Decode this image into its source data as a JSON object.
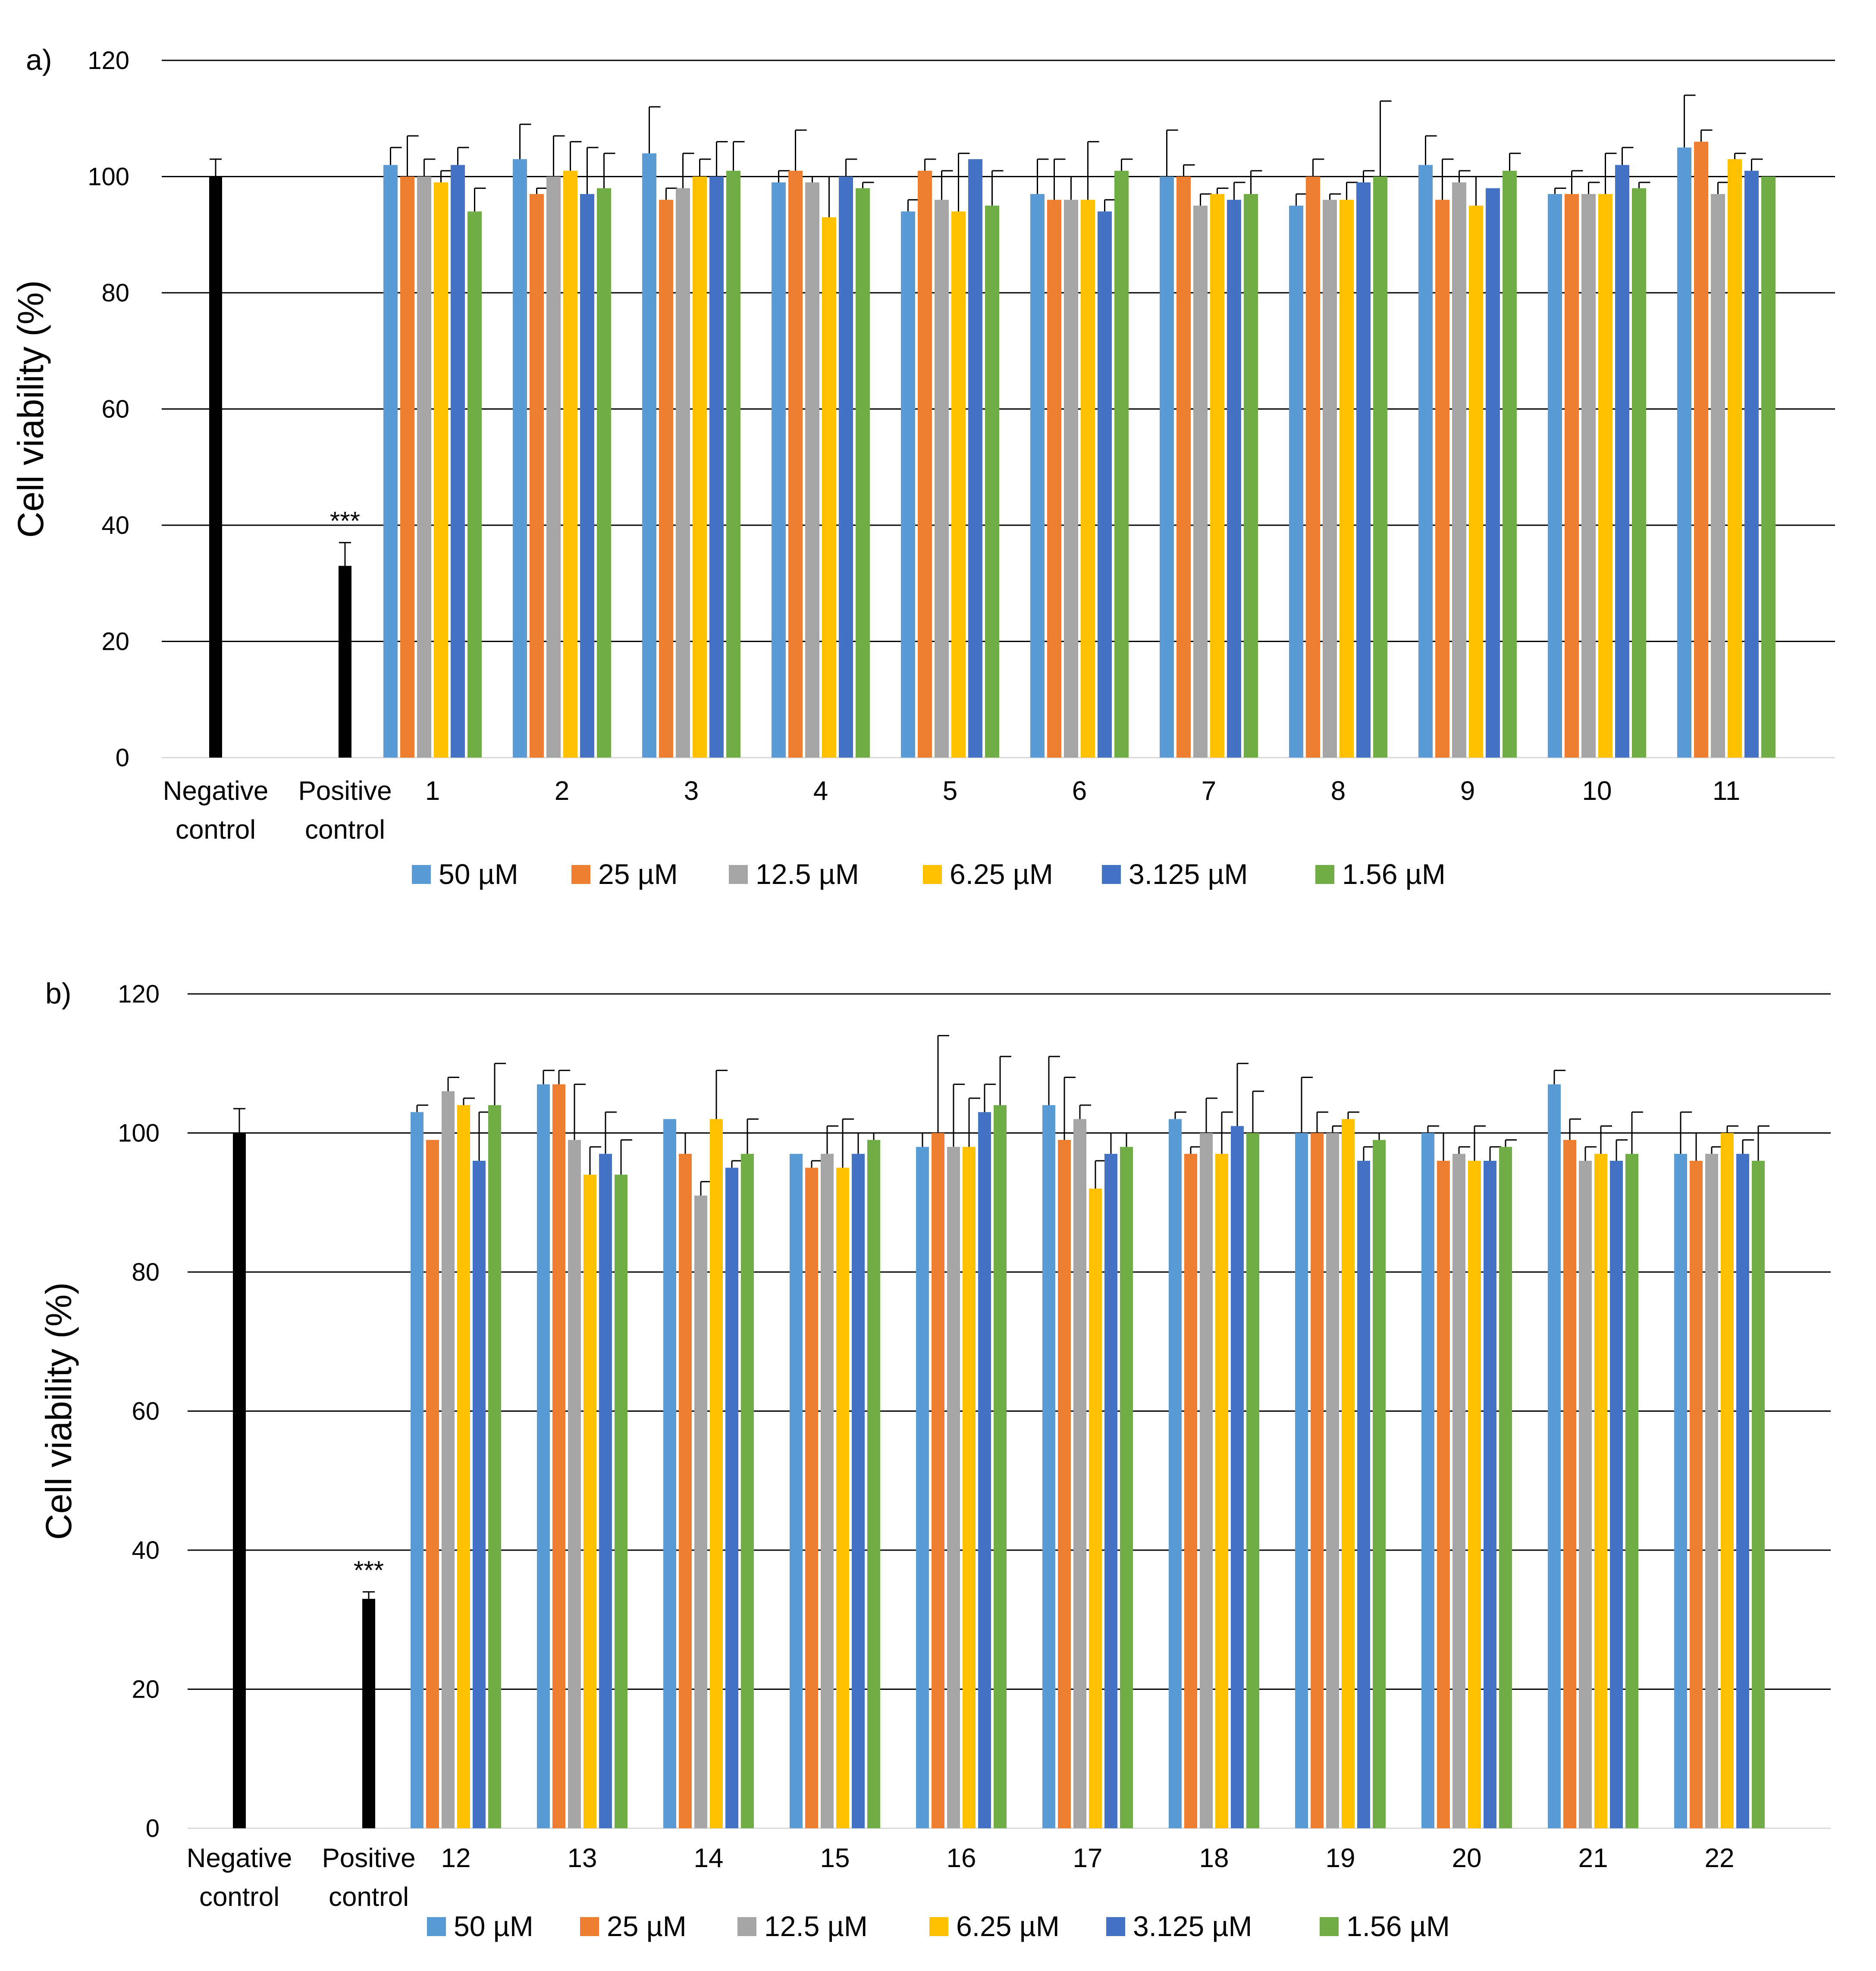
{
  "figure": {
    "legend_colors": [
      "#5B9BD5",
      "#ED7D31",
      "#A5A5A5",
      "#FFC000",
      "#4472C4",
      "#70AD47"
    ],
    "control_color": "#000000"
  },
  "chart_data": [
    {
      "type": "bar",
      "panel_label": "a)",
      "ylabel": "Cell viability (%)",
      "ylim": [
        0,
        120
      ],
      "yticks": [
        0,
        20,
        40,
        60,
        80,
        100,
        120
      ],
      "grid": true,
      "legend_position": "bottom",
      "controls": [
        {
          "label": [
            "Negative",
            "control"
          ],
          "value": 100,
          "error": 3,
          "annotation": ""
        },
        {
          "label": [
            "Positive",
            "control"
          ],
          "value": 33,
          "error": 4,
          "annotation": "***"
        }
      ],
      "categories": [
        "1",
        "2",
        "3",
        "4",
        "5",
        "6",
        "7",
        "8",
        "9",
        "10",
        "11"
      ],
      "series": [
        {
          "name": "50 µM",
          "values": [
            102,
            103,
            104,
            99,
            94,
            97,
            100,
            95,
            102,
            97,
            105
          ],
          "errors": [
            3,
            6,
            8,
            2,
            2,
            6,
            8,
            2,
            5,
            1,
            9
          ]
        },
        {
          "name": "25 µM",
          "values": [
            100,
            97,
            96,
            101,
            101,
            96,
            100,
            100,
            96,
            97,
            106
          ],
          "errors": [
            7,
            1,
            2,
            7,
            2,
            7,
            2,
            3,
            7,
            4,
            2
          ]
        },
        {
          "name": "12.5 µM",
          "values": [
            100,
            100,
            98,
            99,
            96,
            96,
            95,
            96,
            99,
            97,
            97
          ],
          "errors": [
            3,
            7,
            6,
            1,
            5,
            4,
            2,
            1,
            2,
            2,
            2
          ]
        },
        {
          "name": "6.25 µM",
          "values": [
            99,
            101,
            100,
            93,
            94,
            96,
            97,
            96,
            95,
            97,
            103
          ],
          "errors": [
            2,
            5,
            3,
            7,
            10,
            10,
            1,
            3,
            5,
            7,
            1
          ]
        },
        {
          "name": "3.125 µM",
          "values": [
            102,
            97,
            100,
            100,
            103,
            94,
            96,
            99,
            98,
            102,
            101
          ],
          "errors": [
            3,
            8,
            6,
            3,
            0,
            2,
            3,
            2,
            0,
            3,
            2
          ]
        },
        {
          "name": "1.56 µM",
          "values": [
            94,
            98,
            101,
            98,
            95,
            101,
            97,
            100,
            101,
            98,
            100
          ],
          "errors": [
            4,
            6,
            5,
            1,
            6,
            2,
            4,
            13,
            3,
            1,
            0
          ]
        }
      ]
    },
    {
      "type": "bar",
      "panel_label": "b)",
      "ylabel": "Cell viability (%)",
      "ylim": [
        0,
        120
      ],
      "yticks": [
        0,
        20,
        40,
        60,
        80,
        100,
        120
      ],
      "grid": true,
      "legend_position": "bottom",
      "controls": [
        {
          "label": [
            "Negative",
            "control"
          ],
          "value": 100,
          "error": 3.5,
          "annotation": ""
        },
        {
          "label": [
            "Positive",
            "control"
          ],
          "value": 33,
          "error": 1,
          "annotation": "***"
        }
      ],
      "categories": [
        "12",
        "13",
        "14",
        "15",
        "16",
        "17",
        "18",
        "19",
        "20",
        "21",
        "22"
      ],
      "series": [
        {
          "name": "50 µM",
          "values": [
            103,
            107,
            102,
            97,
            98,
            104,
            102,
            100,
            100,
            107,
            97
          ],
          "errors": [
            1,
            2,
            0,
            0,
            2,
            7,
            1,
            8,
            1,
            2,
            6
          ]
        },
        {
          "name": "25 µM",
          "values": [
            99,
            107,
            97,
            95,
            100,
            99,
            97,
            100,
            96,
            99,
            96
          ],
          "errors": [
            0,
            2,
            3,
            1,
            14,
            9,
            1,
            3,
            4,
            3,
            4
          ]
        },
        {
          "name": "12.5 µM",
          "values": [
            106,
            99,
            91,
            97,
            98,
            102,
            100,
            100,
            97,
            96,
            97
          ],
          "errors": [
            2,
            8,
            2,
            4,
            9,
            2,
            5,
            1,
            1,
            2,
            1
          ]
        },
        {
          "name": "6.25 µM",
          "values": [
            104,
            94,
            102,
            95,
            98,
            92,
            97,
            102,
            96,
            97,
            100
          ],
          "errors": [
            1,
            4,
            7,
            7,
            7,
            4,
            6,
            1,
            5,
            4,
            1
          ]
        },
        {
          "name": "3.125 µM",
          "values": [
            96,
            97,
            95,
            97,
            103,
            97,
            101,
            96,
            96,
            96,
            97
          ],
          "errors": [
            7,
            6,
            1,
            3,
            4,
            3,
            9,
            2,
            2,
            3,
            2
          ]
        },
        {
          "name": "1.56 µM",
          "values": [
            104,
            94,
            97,
            99,
            104,
            98,
            100,
            99,
            98,
            97,
            96
          ],
          "errors": [
            6,
            5,
            5,
            1,
            7,
            2,
            6,
            1,
            1,
            6,
            5
          ]
        }
      ]
    }
  ]
}
